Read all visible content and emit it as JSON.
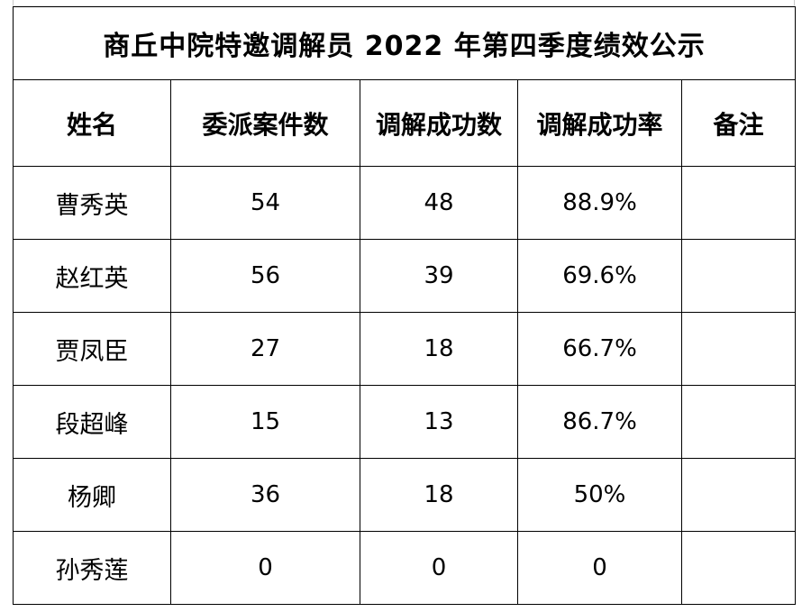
{
  "document": {
    "title": "商丘中院特邀调解员 2022 年第四季度绩效公示",
    "headers": [
      "姓名",
      "委派案件数",
      "调解成功数",
      "调解成功率",
      "备注"
    ],
    "rows": [
      {
        "name": "曹秀英",
        "assigned": "54",
        "success": "48",
        "rate": "88.9%",
        "note": ""
      },
      {
        "name": "赵红英",
        "assigned": "56",
        "success": "39",
        "rate": "69.6%",
        "note": ""
      },
      {
        "name": "贾凤臣",
        "assigned": "27",
        "success": "18",
        "rate": "66.7%",
        "note": ""
      },
      {
        "name": "段超峰",
        "assigned": "15",
        "success": "13",
        "rate": "86.7%",
        "note": ""
      },
      {
        "name": "杨卿",
        "assigned": "36",
        "success": "18",
        "rate": "50%",
        "note": ""
      },
      {
        "name": "孙秀莲",
        "assigned": "0",
        "success": "0",
        "rate": "0",
        "note": ""
      }
    ]
  }
}
